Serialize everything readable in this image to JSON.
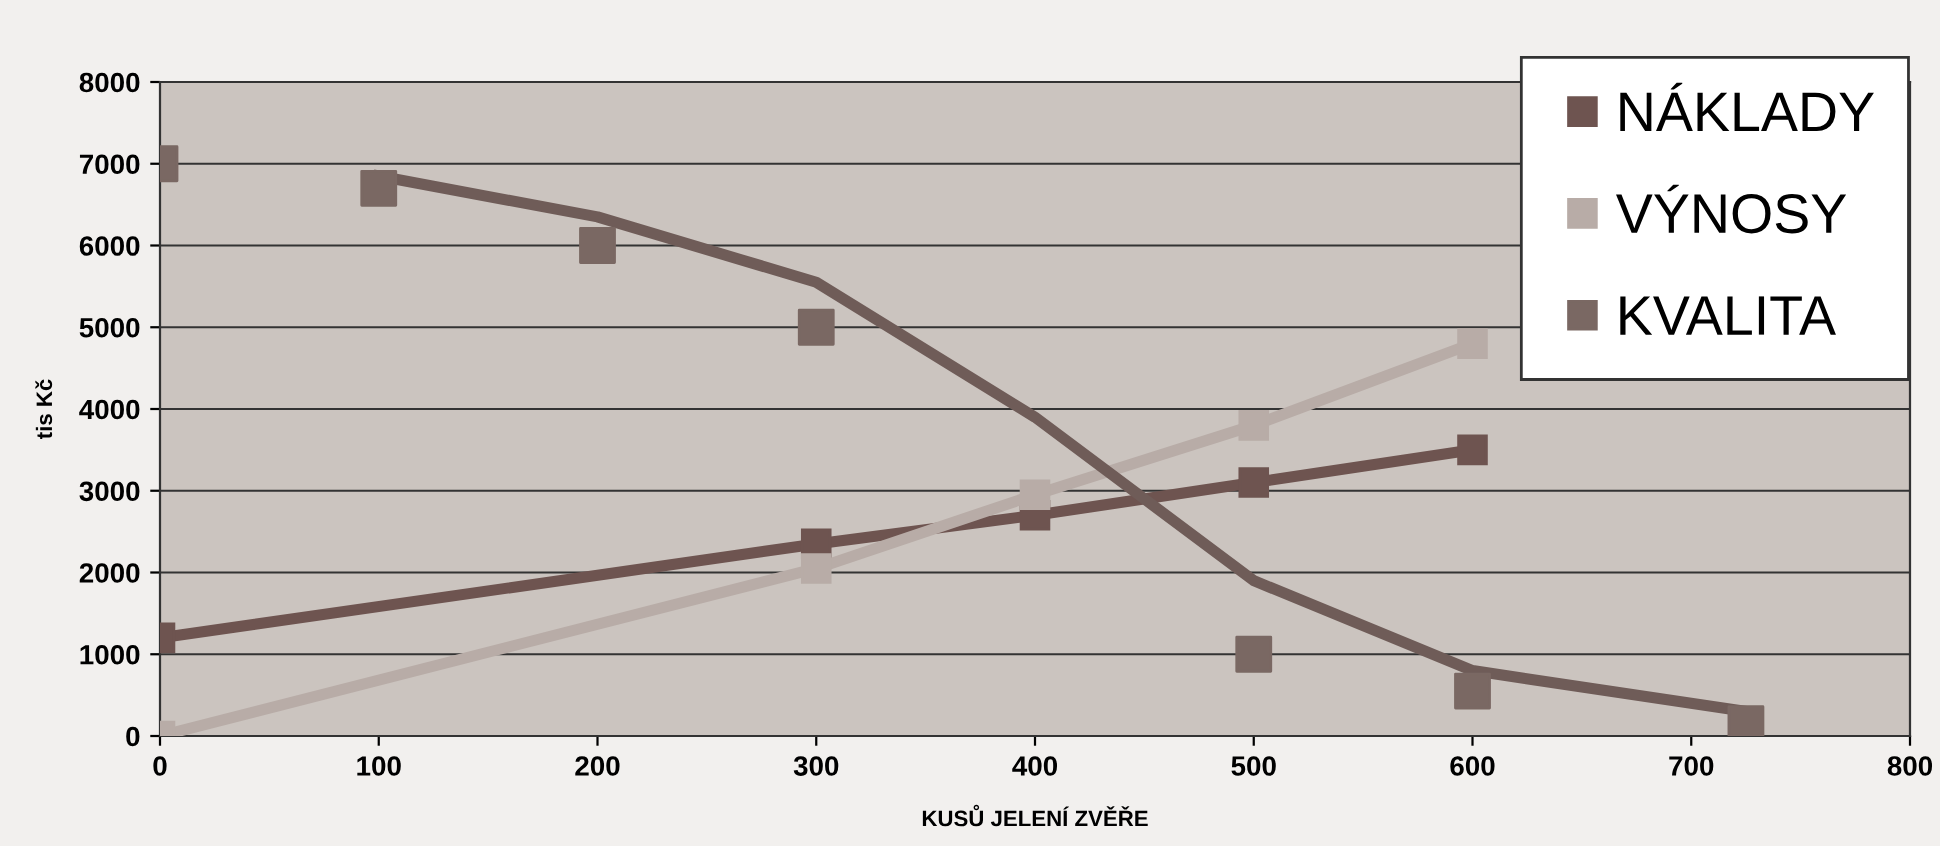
{
  "chart_data": {
    "type": "line",
    "xlabel": "KUSŮ JELENÍ ZVĚŘE",
    "ylabel": "tis Kč",
    "xlim": [
      0,
      800
    ],
    "xticks": [
      0,
      100,
      200,
      300,
      400,
      500,
      600,
      700,
      800
    ],
    "ylim": [
      0,
      8000
    ],
    "yticks": [
      0,
      1000,
      2000,
      3000,
      4000,
      5000,
      6000,
      7000,
      8000
    ],
    "grid": "y",
    "legend": "top right",
    "marker": "square",
    "line_style": "solid",
    "series": [
      {
        "name": "NÁKLADY",
        "color": "#6e5450",
        "x": [
          0,
          300,
          400,
          500,
          600
        ],
        "values": [
          1200,
          2350,
          2700,
          3100,
          3500
        ]
      },
      {
        "name": "VÝNOSY",
        "color": "#b8aca7",
        "x": [
          0,
          300,
          400,
          500,
          600
        ],
        "values": [
          0,
          2050,
          2950,
          3800,
          4800
        ]
      },
      {
        "name": "KVALITA",
        "type": "scatter",
        "color": "#7a6863",
        "x": [
          0,
          100,
          200,
          300,
          500,
          600,
          725
        ],
        "values": [
          7000,
          6700,
          6000,
          5000,
          1000,
          550,
          150
        ]
      },
      {
        "type": "line",
        "marker": "none",
        "color": "#6f5c58",
        "x": [
          100,
          200,
          300,
          400,
          450,
          500,
          600,
          725
        ],
        "values": [
          6850,
          6350,
          5550,
          3900,
          2900,
          1900,
          800,
          300
        ]
      }
    ]
  }
}
